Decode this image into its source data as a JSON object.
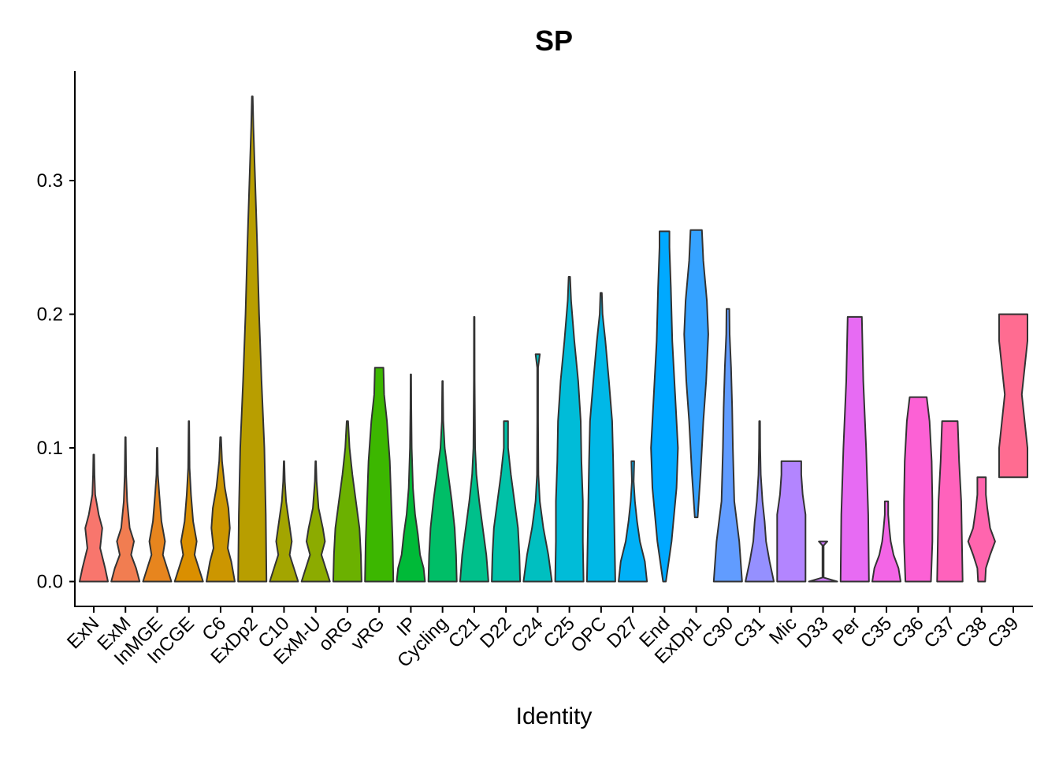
{
  "chart_data": {
    "type": "violin",
    "title": "SP",
    "xlabel": "Identity",
    "ylabel": "",
    "ylim": [
      -0.018,
      0.382
    ],
    "yticks": [
      0.0,
      0.1,
      0.2,
      0.3
    ],
    "ytick_labels": [
      "0.0",
      "0.1",
      "0.2",
      "0.3"
    ],
    "categories": [
      "ExN",
      "ExM",
      "InMGE",
      "InCGE",
      "C6",
      "ExDp2",
      "C10",
      "ExM-U",
      "oRG",
      "vRG",
      "IP",
      "Cycling",
      "C21",
      "D22",
      "C24",
      "C25",
      "OPC",
      "D27",
      "End",
      "ExDp1",
      "C30",
      "C31",
      "Mic",
      "D33",
      "Per",
      "C35",
      "C36",
      "C37",
      "C38",
      "C39"
    ],
    "colors": [
      "#F8766D",
      "#F17D51",
      "#E7851E",
      "#DA8F00",
      "#CC9600",
      "#B89E00",
      "#A3A500",
      "#8CAB00",
      "#6BB100",
      "#3CB700",
      "#00BA38",
      "#00BE67",
      "#00C08B",
      "#00C1A7",
      "#00BFC0",
      "#00BCD8",
      "#00B8E7",
      "#00B0F6",
      "#00A9FF",
      "#35A2FF",
      "#619CFF",
      "#9590FF",
      "#B385FF",
      "#D079FF",
      "#E76BF3",
      "#F365E6",
      "#FC61D5",
      "#FF62BC",
      "#FF65AE",
      "#FF6C91"
    ],
    "series": [
      {
        "name": "ExN",
        "max": 0.095,
        "profile": [
          [
            0,
            1
          ],
          [
            0.01,
            0.8
          ],
          [
            0.025,
            0.45
          ],
          [
            0.04,
            0.6
          ],
          [
            0.05,
            0.35
          ],
          [
            0.065,
            0.1
          ],
          [
            0.08,
            0.05
          ],
          [
            0.095,
            0.03
          ]
        ]
      },
      {
        "name": "ExM",
        "max": 0.108,
        "profile": [
          [
            0,
            1
          ],
          [
            0.01,
            0.75
          ],
          [
            0.02,
            0.4
          ],
          [
            0.03,
            0.6
          ],
          [
            0.04,
            0.3
          ],
          [
            0.06,
            0.12
          ],
          [
            0.08,
            0.05
          ],
          [
            0.108,
            0.02
          ]
        ]
      },
      {
        "name": "InMGE",
        "max": 0.1,
        "profile": [
          [
            0,
            1
          ],
          [
            0.01,
            0.7
          ],
          [
            0.02,
            0.4
          ],
          [
            0.03,
            0.55
          ],
          [
            0.045,
            0.3
          ],
          [
            0.065,
            0.15
          ],
          [
            0.08,
            0.05
          ],
          [
            0.1,
            0.02
          ]
        ]
      },
      {
        "name": "InCGE",
        "max": 0.12,
        "profile": [
          [
            0,
            1
          ],
          [
            0.01,
            0.7
          ],
          [
            0.02,
            0.4
          ],
          [
            0.03,
            0.55
          ],
          [
            0.045,
            0.3
          ],
          [
            0.065,
            0.15
          ],
          [
            0.085,
            0.05
          ],
          [
            0.12,
            0.02
          ]
        ]
      },
      {
        "name": "C6",
        "max": 0.108,
        "profile": [
          [
            0,
            1
          ],
          [
            0.015,
            0.75
          ],
          [
            0.025,
            0.5
          ],
          [
            0.04,
            0.65
          ],
          [
            0.055,
            0.55
          ],
          [
            0.07,
            0.3
          ],
          [
            0.09,
            0.1
          ],
          [
            0.108,
            0.03
          ]
        ]
      },
      {
        "name": "ExDp2",
        "max": 0.363,
        "profile": [
          [
            0,
            1
          ],
          [
            0.05,
            0.95
          ],
          [
            0.1,
            0.85
          ],
          [
            0.15,
            0.65
          ],
          [
            0.2,
            0.48
          ],
          [
            0.25,
            0.35
          ],
          [
            0.3,
            0.2
          ],
          [
            0.34,
            0.08
          ],
          [
            0.363,
            0.03
          ]
        ]
      },
      {
        "name": "C10",
        "max": 0.09,
        "profile": [
          [
            0,
            1
          ],
          [
            0.01,
            0.7
          ],
          [
            0.02,
            0.4
          ],
          [
            0.03,
            0.55
          ],
          [
            0.045,
            0.35
          ],
          [
            0.06,
            0.15
          ],
          [
            0.075,
            0.06
          ],
          [
            0.09,
            0.02
          ]
        ]
      },
      {
        "name": "ExM-U",
        "max": 0.09,
        "profile": [
          [
            0,
            1
          ],
          [
            0.01,
            0.7
          ],
          [
            0.02,
            0.4
          ],
          [
            0.03,
            0.65
          ],
          [
            0.04,
            0.5
          ],
          [
            0.055,
            0.2
          ],
          [
            0.075,
            0.06
          ],
          [
            0.09,
            0.02
          ]
        ]
      },
      {
        "name": "oRG",
        "max": 0.12,
        "profile": [
          [
            0,
            1
          ],
          [
            0.02,
            0.95
          ],
          [
            0.04,
            0.85
          ],
          [
            0.06,
            0.6
          ],
          [
            0.08,
            0.35
          ],
          [
            0.1,
            0.15
          ],
          [
            0.12,
            0.05
          ]
        ]
      },
      {
        "name": "vRG",
        "max": 0.16,
        "profile": [
          [
            0,
            1
          ],
          [
            0.03,
            0.95
          ],
          [
            0.06,
            0.85
          ],
          [
            0.09,
            0.75
          ],
          [
            0.12,
            0.55
          ],
          [
            0.14,
            0.35
          ],
          [
            0.16,
            0.3
          ]
        ]
      },
      {
        "name": "IP",
        "max": 0.155,
        "profile": [
          [
            0,
            1
          ],
          [
            0.01,
            0.9
          ],
          [
            0.02,
            0.65
          ],
          [
            0.035,
            0.5
          ],
          [
            0.05,
            0.3
          ],
          [
            0.07,
            0.15
          ],
          [
            0.1,
            0.06
          ],
          [
            0.13,
            0.03
          ],
          [
            0.155,
            0.02
          ]
        ]
      },
      {
        "name": "Cycling",
        "max": 0.15,
        "profile": [
          [
            0,
            1
          ],
          [
            0.02,
            0.95
          ],
          [
            0.04,
            0.85
          ],
          [
            0.06,
            0.65
          ],
          [
            0.08,
            0.4
          ],
          [
            0.1,
            0.15
          ],
          [
            0.12,
            0.05
          ],
          [
            0.15,
            0.02
          ]
        ]
      },
      {
        "name": "C21",
        "max": 0.198,
        "profile": [
          [
            0,
            1
          ],
          [
            0.02,
            0.85
          ],
          [
            0.04,
            0.6
          ],
          [
            0.06,
            0.35
          ],
          [
            0.08,
            0.15
          ],
          [
            0.1,
            0.06
          ],
          [
            0.15,
            0.03
          ],
          [
            0.198,
            0.02
          ]
        ]
      },
      {
        "name": "D22",
        "max": 0.12,
        "profile": [
          [
            0,
            1
          ],
          [
            0.02,
            0.95
          ],
          [
            0.04,
            0.85
          ],
          [
            0.06,
            0.6
          ],
          [
            0.08,
            0.35
          ],
          [
            0.1,
            0.15
          ],
          [
            0.12,
            0.15
          ]
        ]
      },
      {
        "name": "C24",
        "max": 0.17,
        "profile": [
          [
            0,
            1
          ],
          [
            0.02,
            0.75
          ],
          [
            0.04,
            0.4
          ],
          [
            0.06,
            0.15
          ],
          [
            0.08,
            0.05
          ],
          [
            0.12,
            0.03
          ],
          [
            0.16,
            0.03
          ],
          [
            0.17,
            0.15
          ]
        ]
      },
      {
        "name": "C25",
        "max": 0.228,
        "profile": [
          [
            0,
            1
          ],
          [
            0.03,
            0.95
          ],
          [
            0.06,
            0.95
          ],
          [
            0.09,
            0.85
          ],
          [
            0.12,
            0.8
          ],
          [
            0.15,
            0.62
          ],
          [
            0.18,
            0.35
          ],
          [
            0.21,
            0.12
          ],
          [
            0.228,
            0.05
          ]
        ]
      },
      {
        "name": "OPC",
        "max": 0.216,
        "profile": [
          [
            0,
            1
          ],
          [
            0.03,
            0.95
          ],
          [
            0.06,
            0.9
          ],
          [
            0.09,
            0.85
          ],
          [
            0.12,
            0.78
          ],
          [
            0.15,
            0.55
          ],
          [
            0.18,
            0.3
          ],
          [
            0.2,
            0.1
          ],
          [
            0.216,
            0.05
          ]
        ]
      },
      {
        "name": "D27",
        "max": 0.09,
        "profile": [
          [
            0,
            1
          ],
          [
            0.015,
            0.85
          ],
          [
            0.03,
            0.5
          ],
          [
            0.045,
            0.3
          ],
          [
            0.06,
            0.15
          ],
          [
            0.075,
            0.06
          ],
          [
            0.09,
            0.1
          ]
        ]
      },
      {
        "name": "End",
        "max": 0.262,
        "profile": [
          [
            0,
            0.1
          ],
          [
            0.03,
            0.5
          ],
          [
            0.07,
            0.85
          ],
          [
            0.1,
            0.95
          ],
          [
            0.14,
            0.75
          ],
          [
            0.18,
            0.55
          ],
          [
            0.22,
            0.45
          ],
          [
            0.25,
            0.35
          ],
          [
            0.262,
            0.35
          ]
        ]
      },
      {
        "name": "ExDp1",
        "min": 0.048,
        "max": 0.263,
        "profile": [
          [
            0.048,
            0.1
          ],
          [
            0.08,
            0.3
          ],
          [
            0.12,
            0.5
          ],
          [
            0.15,
            0.7
          ],
          [
            0.185,
            0.85
          ],
          [
            0.21,
            0.75
          ],
          [
            0.24,
            0.5
          ],
          [
            0.263,
            0.4
          ]
        ]
      },
      {
        "name": "C30",
        "max": 0.204,
        "profile": [
          [
            0,
            1
          ],
          [
            0.03,
            0.8
          ],
          [
            0.06,
            0.45
          ],
          [
            0.1,
            0.35
          ],
          [
            0.13,
            0.3
          ],
          [
            0.16,
            0.22
          ],
          [
            0.185,
            0.12
          ],
          [
            0.204,
            0.1
          ]
        ]
      },
      {
        "name": "C31",
        "max": 0.12,
        "profile": [
          [
            0,
            1
          ],
          [
            0.015,
            0.7
          ],
          [
            0.03,
            0.45
          ],
          [
            0.045,
            0.35
          ],
          [
            0.06,
            0.2
          ],
          [
            0.08,
            0.08
          ],
          [
            0.1,
            0.04
          ],
          [
            0.12,
            0.03
          ]
        ]
      },
      {
        "name": "Mic",
        "max": 0.09,
        "profile": [
          [
            0,
            1
          ],
          [
            0.02,
            1
          ],
          [
            0.04,
            1
          ],
          [
            0.05,
            1
          ],
          [
            0.065,
            0.8
          ],
          [
            0.08,
            0.7
          ],
          [
            0.09,
            0.7
          ]
        ]
      },
      {
        "name": "D33",
        "max": 0.03,
        "profile": [
          [
            0,
            1
          ],
          [
            0.003,
            0.04
          ],
          [
            0.027,
            0.04
          ],
          [
            0.03,
            0.3
          ]
        ]
      },
      {
        "name": "Per",
        "max": 0.198,
        "profile": [
          [
            0,
            1
          ],
          [
            0.05,
            0.95
          ],
          [
            0.1,
            0.8
          ],
          [
            0.15,
            0.6
          ],
          [
            0.198,
            0.5
          ]
        ]
      },
      {
        "name": "C35",
        "max": 0.06,
        "profile": [
          [
            0,
            1
          ],
          [
            0.01,
            0.85
          ],
          [
            0.02,
            0.5
          ],
          [
            0.03,
            0.3
          ],
          [
            0.04,
            0.2
          ],
          [
            0.05,
            0.12
          ],
          [
            0.06,
            0.12
          ]
        ]
      },
      {
        "name": "C36",
        "max": 0.138,
        "profile": [
          [
            0,
            0.9
          ],
          [
            0.03,
            1
          ],
          [
            0.06,
            1
          ],
          [
            0.09,
            0.95
          ],
          [
            0.12,
            0.8
          ],
          [
            0.138,
            0.6
          ]
        ]
      },
      {
        "name": "C37",
        "max": 0.12,
        "profile": [
          [
            0,
            0.9
          ],
          [
            0.03,
            0.85
          ],
          [
            0.06,
            0.8
          ],
          [
            0.09,
            0.65
          ],
          [
            0.12,
            0.55
          ]
        ]
      },
      {
        "name": "C38",
        "max": 0.078,
        "profile": [
          [
            0,
            0.25
          ],
          [
            0.01,
            0.3
          ],
          [
            0.02,
            0.6
          ],
          [
            0.03,
            0.95
          ],
          [
            0.04,
            0.6
          ],
          [
            0.055,
            0.4
          ],
          [
            0.065,
            0.3
          ],
          [
            0.078,
            0.3
          ]
        ]
      },
      {
        "name": "C39",
        "min": 0.078,
        "max": 0.2,
        "profile": [
          [
            0.078,
            1
          ],
          [
            0.1,
            1
          ],
          [
            0.12,
            0.8
          ],
          [
            0.14,
            0.6
          ],
          [
            0.16,
            0.8
          ],
          [
            0.18,
            1
          ],
          [
            0.2,
            1
          ]
        ]
      }
    ]
  }
}
